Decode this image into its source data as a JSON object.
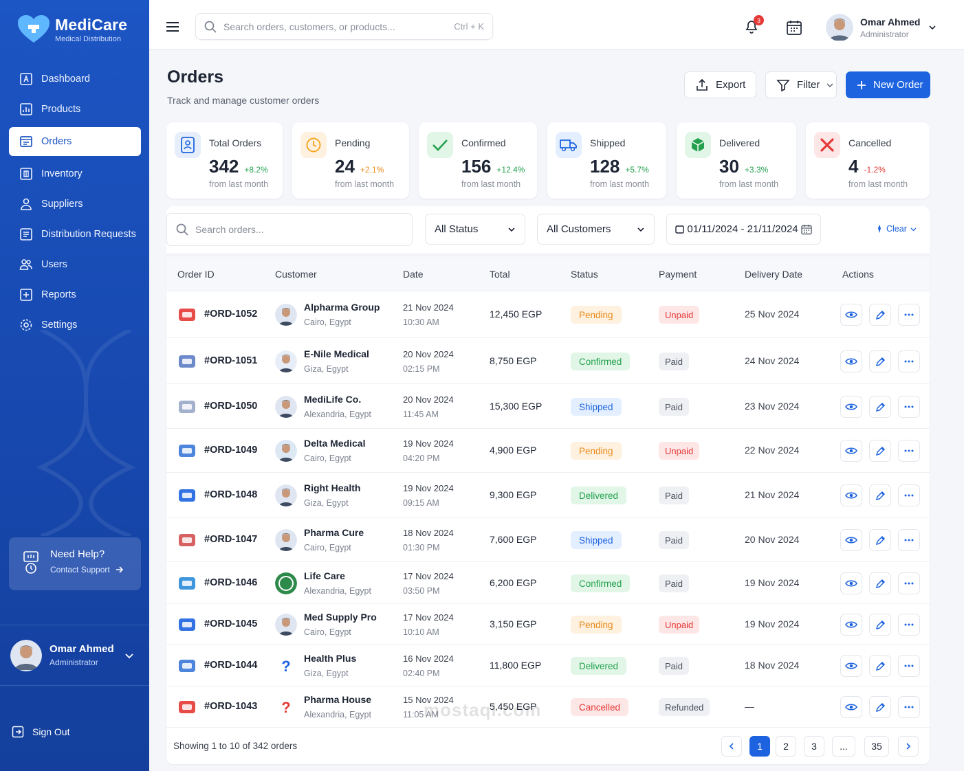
{
  "brand": {
    "name": "MediCare",
    "subtitle": "Medical Distribution"
  },
  "sidebar": {
    "items": [
      {
        "label": "Dashboard",
        "icon": "dashboard-icon"
      },
      {
        "label": "Products",
        "icon": "products-icon"
      },
      {
        "label": "Orders",
        "icon": "orders-icon",
        "active": true
      },
      {
        "label": "Inventory",
        "icon": "inventory-icon"
      },
      {
        "label": "Suppliers",
        "icon": "suppliers-icon"
      },
      {
        "label": "Distribution Requests",
        "icon": "distribution-icon"
      },
      {
        "label": "Users",
        "icon": "users-icon"
      },
      {
        "label": "Reports",
        "icon": "reports-icon"
      },
      {
        "label": "Settings",
        "icon": "settings-icon"
      }
    ],
    "help": {
      "title": "Need Help?",
      "link": "Contact Support"
    },
    "user": {
      "name": "Omar Ahmed",
      "role": "Administrator"
    },
    "signout": "Sign Out"
  },
  "topbar": {
    "search_placeholder": "Search orders, customers, or products...",
    "shortcut": "Ctrl + K",
    "notifications": "3",
    "user": {
      "name": "Omar Ahmed",
      "role": "Administrator"
    }
  },
  "page": {
    "title": "Orders",
    "subtitle": "Track and manage customer orders",
    "export_label": "Export",
    "filter_label": "Filter",
    "new_order_label": "New Order"
  },
  "stats": [
    {
      "label": "Total Orders",
      "value": "342",
      "change": "+8.2%",
      "from": "from last month",
      "color": "#1d63e0",
      "tone": "up"
    },
    {
      "label": "Pending",
      "value": "24",
      "change": "+2.1%",
      "from": "from last month",
      "color": "#f5a623",
      "tone": "warn"
    },
    {
      "label": "Confirmed",
      "value": "156",
      "change": "+12.4%",
      "from": "from last month",
      "color": "#23a04d",
      "tone": "up"
    },
    {
      "label": "Shipped",
      "value": "128",
      "change": "+5.7%",
      "from": "from last month",
      "color": "#1d63e0",
      "tone": "up"
    },
    {
      "label": "Delivered",
      "value": "30",
      "change": "+3.3%",
      "from": "from last month",
      "color": "#23a04d",
      "tone": "up"
    },
    {
      "label": "Cancelled",
      "value": "4",
      "change": "-1.2%",
      "from": "from last month",
      "color": "#e53935",
      "tone": "down"
    }
  ],
  "filters": {
    "search_placeholder": "Search orders...",
    "status": "All Status",
    "customers": "All Customers",
    "date_range": "01/11/2024 - 21/11/2024",
    "clear": "Clear"
  },
  "table": {
    "columns": [
      "Order ID",
      "Customer",
      "Date",
      "Total",
      "Status",
      "Payment",
      "Delivery Date",
      "Actions"
    ],
    "rows": [
      {
        "id": "#ORD-1052",
        "customer": "Alpharma Group",
        "city": "Cairo, Egypt",
        "date": "21 Nov 2024",
        "time": "10:30 AM",
        "total": "12,450 EGP",
        "status": "Pending",
        "payment": "Unpaid",
        "delivery": "25 Nov 2024"
      },
      {
        "id": "#ORD-1051",
        "customer": "E-Nile Medical",
        "city": "Giza, Egypt",
        "date": "20 Nov 2024",
        "time": "02:15 PM",
        "total": "8,750 EGP",
        "status": "Confirmed",
        "payment": "Paid",
        "delivery": "24 Nov 2024"
      },
      {
        "id": "#ORD-1050",
        "customer": "MediLife Co.",
        "city": "Alexandria, Egypt",
        "date": "20 Nov 2024",
        "time": "11:45 AM",
        "total": "15,300 EGP",
        "status": "Shipped",
        "payment": "Paid",
        "delivery": "23 Nov 2024"
      },
      {
        "id": "#ORD-1049",
        "customer": "Delta Medical",
        "city": "Cairo, Egypt",
        "date": "19 Nov 2024",
        "time": "04:20 PM",
        "total": "4,900 EGP",
        "status": "Pending",
        "payment": "Unpaid",
        "delivery": "22 Nov 2024"
      },
      {
        "id": "#ORD-1048",
        "customer": "Right Health",
        "city": "Giza, Egypt",
        "date": "19 Nov 2024",
        "time": "09:15 AM",
        "total": "9,300 EGP",
        "status": "Delivered",
        "payment": "Paid",
        "delivery": "21 Nov 2024"
      },
      {
        "id": "#ORD-1047",
        "customer": "Pharma Cure",
        "city": "Cairo, Egypt",
        "date": "18 Nov 2024",
        "time": "01:30 PM",
        "total": "7,600 EGP",
        "status": "Shipped",
        "payment": "Paid",
        "delivery": "20 Nov 2024"
      },
      {
        "id": "#ORD-1046",
        "customer": "Life Care",
        "city": "Alexandria, Egypt",
        "date": "17 Nov 2024",
        "time": "03:50 PM",
        "total": "6,200 EGP",
        "status": "Confirmed",
        "payment": "Paid",
        "delivery": "19 Nov 2024"
      },
      {
        "id": "#ORD-1045",
        "customer": "Med Supply Pro",
        "city": "Cairo, Egypt",
        "date": "17 Nov 2024",
        "time": "10:10 AM",
        "total": "3,150 EGP",
        "status": "Pending",
        "payment": "Unpaid",
        "delivery": "19 Nov 2024"
      },
      {
        "id": "#ORD-1044",
        "customer": "Health Plus",
        "city": "Giza, Egypt",
        "date": "16 Nov 2024",
        "time": "02:40 PM",
        "total": "11,800 EGP",
        "status": "Delivered",
        "payment": "Paid",
        "delivery": "18 Nov 2024"
      },
      {
        "id": "#ORD-1043",
        "customer": "Pharma House",
        "city": "Alexandria, Egypt",
        "date": "15 Nov 2024",
        "time": "11:05 AM",
        "total": "5,450 EGP",
        "status": "Cancelled",
        "payment": "Refunded",
        "delivery": "—"
      }
    ]
  },
  "pagination": {
    "showing": "Showing 1 to 10 of 342 orders",
    "pages": [
      "1",
      "2",
      "3",
      "...",
      "35"
    ]
  },
  "watermark": "mostaql.com"
}
